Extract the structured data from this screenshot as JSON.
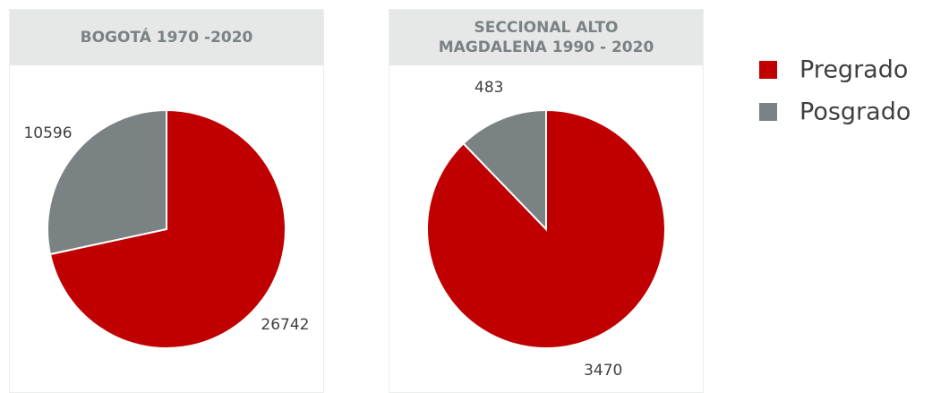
{
  "chart_data": [
    {
      "type": "pie",
      "title": "BOGOTÁ 1970 -2020",
      "categories": [
        "Pregrado",
        "Posgrado"
      ],
      "values": [
        26742,
        10596
      ],
      "colors": [
        "#c00000",
        "#7a8283"
      ],
      "legend": "right"
    },
    {
      "type": "pie",
      "title": "SECCIONAL ALTO MAGDALENA 1990 - 2020",
      "categories": [
        "Pregrado",
        "Posgrado"
      ],
      "values": [
        3470,
        483
      ],
      "colors": [
        "#c00000",
        "#7a8283"
      ]
    }
  ]
}
